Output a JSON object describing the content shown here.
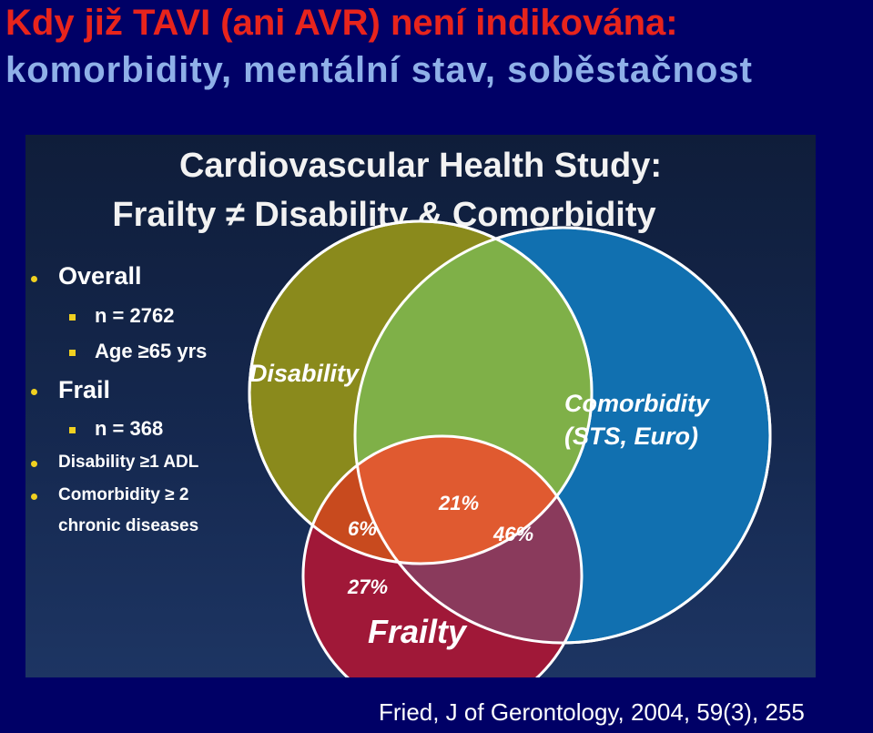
{
  "slide": {
    "title_line1": "Kdy již TAVI (ani AVR) není indikována:",
    "title_line2": "komorbidity, mentální stav, soběstačnost"
  },
  "panel": {
    "title_line1": "Cardiovascular Health Study:",
    "title_line2": "Frailty ≠ Disability & Comorbidity",
    "bullets": {
      "overall": "Overall",
      "overall_n": "n = 2762",
      "overall_age": "Age ≥65 yrs",
      "frail": "Frail",
      "frail_n": "n = 368",
      "disability": "Disability ≥1 ADL",
      "comorbidity_line1": "Comorbidity ≥ 2",
      "comorbidity_line2": "chronic diseases"
    },
    "venn": {
      "sets": {
        "disability": "Disability",
        "comorbidity_line1": "Comorbidity",
        "comorbidity_line2": "(STS, Euro)",
        "frailty": "Frailty"
      },
      "regions": {
        "frailty_disability": "6%",
        "all_three": "21%",
        "frailty_comorbidity": "46%",
        "frailty_only": "27%"
      },
      "colors": {
        "disability": "#8a8a1c",
        "comorbidity": "#1170b0",
        "frailty": "#a01838",
        "disability_comorbidity": "#7fb048"
      }
    }
  },
  "citation": "Fried, J of Gerontology, 2004, 59(3), 255"
}
